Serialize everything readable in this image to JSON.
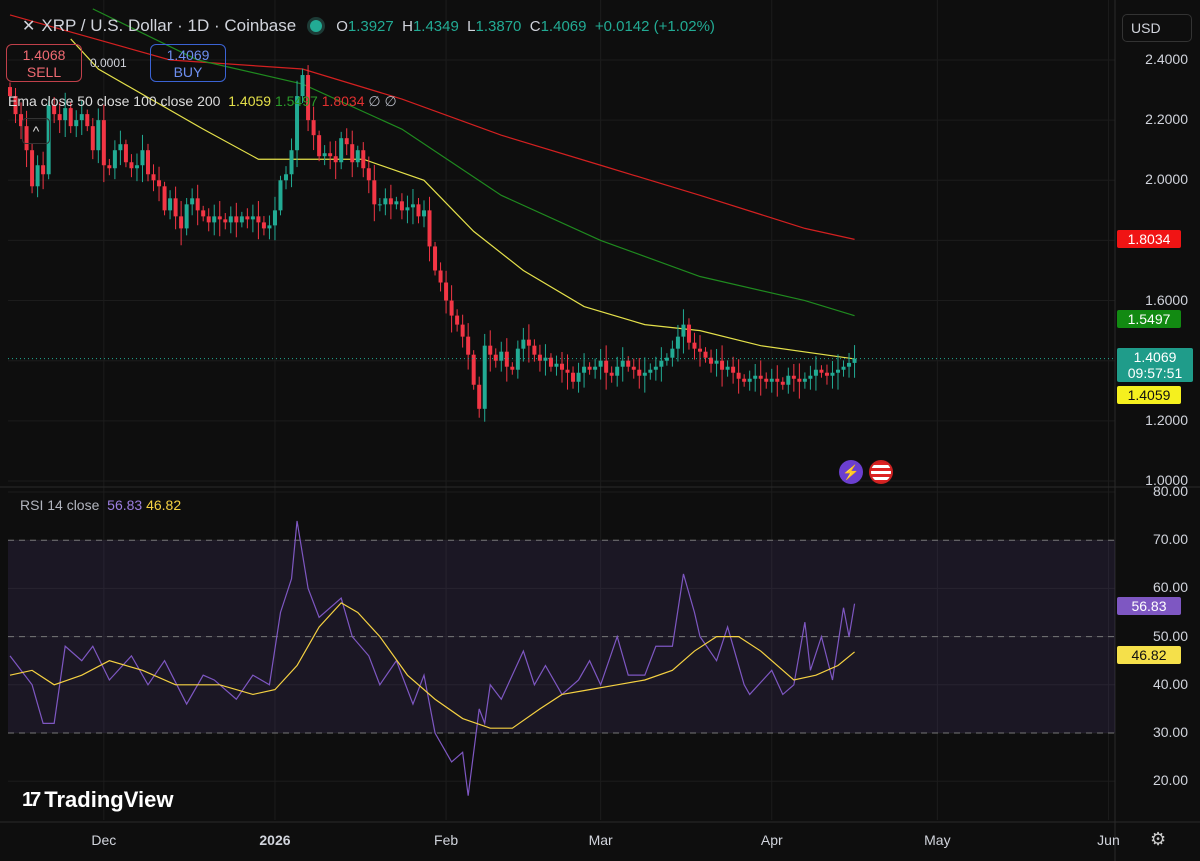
{
  "header": {
    "close_icon": "close-icon",
    "title": "XRP / U.S. Dollar · 1D · Coinbase",
    "o_label": "O",
    "o": "1.3927",
    "h_label": "H",
    "h": "1.4349",
    "l_label": "L",
    "l": "1.3870",
    "c_label": "C",
    "c": "1.4069",
    "change": "+0.0142 (+1.02%)"
  },
  "trade": {
    "sell_price": "1.4068",
    "sell_label": "SELL",
    "spread": "0.0001",
    "buy_price": "1.4069",
    "buy_label": "BUY"
  },
  "currency": "USD",
  "ema_legend": {
    "label": "Ema close 50 close 100 close 200",
    "v50": "1.4059",
    "v100": "1.5497",
    "v200": "1.8034",
    "na1": "∅",
    "na2": "∅",
    "collapse": "^"
  },
  "rsi_legend": {
    "label": "RSI 14 close",
    "rsi": "56.83",
    "ma": "46.82"
  },
  "price_tags": {
    "ema200": "1.8034",
    "ema100": "1.5497",
    "last": "1.4069",
    "countdown": "09:57:51",
    "ema50": "1.4059"
  },
  "rsi_tags": {
    "rsi": "56.83",
    "ma": "46.82"
  },
  "logo": "TradingView",
  "colors": {
    "up": "#22ab94",
    "down": "#f23645",
    "ema50": "#e4e04a",
    "ema100": "#1f8a1f",
    "ema200": "#d32020",
    "rsi": "#7e57c2",
    "rsi_ma": "#f5d142"
  },
  "chart_data": [
    {
      "type": "candlestick",
      "title": "XRP / U.S. Dollar · 1D · Coinbase",
      "start_date": "2025-11-14",
      "closes": [
        2.28,
        2.22,
        2.18,
        2.1,
        1.98,
        2.05,
        2.02,
        2.25,
        2.22,
        2.2,
        2.24,
        2.18,
        2.2,
        2.22,
        2.18,
        2.1,
        2.2,
        2.05,
        2.04,
        2.1,
        2.12,
        2.06,
        2.04,
        2.05,
        2.1,
        2.02,
        2.0,
        1.98,
        1.9,
        1.94,
        1.88,
        1.84,
        1.92,
        1.94,
        1.9,
        1.88,
        1.86,
        1.88,
        1.87,
        1.86,
        1.88,
        1.86,
        1.88,
        1.87,
        1.88,
        1.86,
        1.84,
        1.85,
        1.9,
        2.0,
        2.02,
        2.1,
        2.28,
        2.35,
        2.2,
        2.15,
        2.08,
        2.09,
        2.08,
        2.06,
        2.14,
        2.12,
        2.06,
        2.1,
        2.04,
        2.0,
        1.92,
        1.92,
        1.94,
        1.92,
        1.93,
        1.9,
        1.91,
        1.92,
        1.88,
        1.9,
        1.78,
        1.7,
        1.66,
        1.6,
        1.55,
        1.52,
        1.48,
        1.42,
        1.32,
        1.24,
        1.45,
        1.42,
        1.4,
        1.43,
        1.38,
        1.37,
        1.44,
        1.47,
        1.45,
        1.42,
        1.4,
        1.41,
        1.38,
        1.39,
        1.37,
        1.36,
        1.33,
        1.36,
        1.38,
        1.37,
        1.38,
        1.4,
        1.36,
        1.35,
        1.38,
        1.4,
        1.38,
        1.37,
        1.35,
        1.36,
        1.37,
        1.38,
        1.4,
        1.41,
        1.44,
        1.48,
        1.52,
        1.46,
        1.44,
        1.43,
        1.41,
        1.39,
        1.4,
        1.37,
        1.38,
        1.36,
        1.34,
        1.33,
        1.34,
        1.35,
        1.34,
        1.33,
        1.34,
        1.33,
        1.32,
        1.35,
        1.34,
        1.33,
        1.34,
        1.35,
        1.37,
        1.36,
        1.35,
        1.36,
        1.37,
        1.38,
        1.3927,
        1.4069
      ],
      "ema50": [
        [
          11,
          2.47
        ],
        [
          16,
          2.37
        ],
        [
          35,
          2.17
        ],
        [
          45,
          2.07
        ],
        [
          53,
          2.07
        ],
        [
          64,
          2.07
        ],
        [
          75,
          2.0
        ],
        [
          84,
          1.83
        ],
        [
          93,
          1.7
        ],
        [
          104,
          1.58
        ],
        [
          115,
          1.52
        ],
        [
          125,
          1.5
        ],
        [
          136,
          1.45
        ],
        [
          153,
          1.4059
        ]
      ],
      "ema100": [
        [
          15,
          2.57
        ],
        [
          34,
          2.4
        ],
        [
          53,
          2.32
        ],
        [
          71,
          2.17
        ],
        [
          89,
          1.95
        ],
        [
          107,
          1.8
        ],
        [
          125,
          1.68
        ],
        [
          144,
          1.6
        ],
        [
          153,
          1.5497
        ]
      ],
      "ema200": [
        [
          0,
          2.55
        ],
        [
          29,
          2.4
        ],
        [
          53,
          2.37
        ],
        [
          71,
          2.27
        ],
        [
          89,
          2.15
        ],
        [
          107,
          2.05
        ],
        [
          125,
          1.95
        ],
        [
          144,
          1.84
        ],
        [
          153,
          1.8034
        ]
      ],
      "y_ticks": [
        2.4,
        2.2,
        2.0,
        1.8,
        1.6,
        1.4,
        1.2,
        1.0
      ],
      "ylim": [
        1.0,
        2.4
      ],
      "x_ticks": [
        {
          "label": "Dec",
          "idx": 17
        },
        {
          "label": "2026",
          "idx": 48
        },
        {
          "label": "Feb",
          "idx": 79
        },
        {
          "label": "Mar",
          "idx": 107
        },
        {
          "label": "Apr",
          "idx": 138
        },
        {
          "label": "May",
          "idx": 168
        },
        {
          "label": "Jun",
          "idx": 199
        }
      ]
    },
    {
      "type": "line",
      "title": "RSI 14 close",
      "ylim": [
        20,
        80
      ],
      "y_ticks": [
        80,
        70,
        60,
        50,
        40,
        30,
        20
      ],
      "bands": [
        30,
        50,
        70
      ],
      "rsi": [
        [
          0,
          46
        ],
        [
          4,
          40
        ],
        [
          6,
          32
        ],
        [
          8,
          32
        ],
        [
          10,
          48
        ],
        [
          13,
          45
        ],
        [
          15,
          48
        ],
        [
          18,
          41
        ],
        [
          22,
          46
        ],
        [
          25,
          40
        ],
        [
          28,
          45
        ],
        [
          32,
          36
        ],
        [
          35,
          42
        ],
        [
          37,
          41
        ],
        [
          41,
          37
        ],
        [
          44,
          42
        ],
        [
          47,
          40
        ],
        [
          49,
          55
        ],
        [
          51,
          62
        ],
        [
          52,
          74
        ],
        [
          54,
          60
        ],
        [
          56,
          54
        ],
        [
          60,
          58
        ],
        [
          62,
          50
        ],
        [
          65,
          46
        ],
        [
          67,
          40
        ],
        [
          70,
          45
        ],
        [
          73,
          36
        ],
        [
          75,
          42
        ],
        [
          77,
          30
        ],
        [
          80,
          24
        ],
        [
          82,
          26
        ],
        [
          83,
          17
        ],
        [
          85,
          35
        ],
        [
          86,
          32
        ],
        [
          87,
          40
        ],
        [
          89,
          37
        ],
        [
          91,
          42
        ],
        [
          93,
          47
        ],
        [
          95,
          40
        ],
        [
          97,
          44
        ],
        [
          100,
          38
        ],
        [
          103,
          41
        ],
        [
          105,
          45
        ],
        [
          107,
          40
        ],
        [
          110,
          50
        ],
        [
          112,
          42
        ],
        [
          115,
          42
        ],
        [
          117,
          48
        ],
        [
          120,
          48
        ],
        [
          122,
          63
        ],
        [
          124,
          55
        ],
        [
          125,
          50
        ],
        [
          128,
          45
        ],
        [
          130,
          52
        ],
        [
          133,
          40
        ],
        [
          134,
          38
        ],
        [
          138,
          43
        ],
        [
          140,
          38
        ],
        [
          142,
          40
        ],
        [
          144,
          53
        ],
        [
          145,
          43
        ],
        [
          147,
          50
        ],
        [
          149,
          41
        ],
        [
          151,
          56
        ],
        [
          152,
          50
        ],
        [
          153,
          56.83
        ]
      ],
      "rsi_ma": [
        [
          0,
          42
        ],
        [
          4,
          43
        ],
        [
          8,
          40
        ],
        [
          13,
          42
        ],
        [
          18,
          45
        ],
        [
          24,
          43
        ],
        [
          30,
          40
        ],
        [
          38,
          40
        ],
        [
          44,
          38
        ],
        [
          48,
          39
        ],
        [
          52,
          44
        ],
        [
          56,
          52
        ],
        [
          60,
          57
        ],
        [
          63,
          55
        ],
        [
          67,
          50
        ],
        [
          72,
          42
        ],
        [
          77,
          37
        ],
        [
          82,
          33
        ],
        [
          87,
          31
        ],
        [
          91,
          31
        ],
        [
          96,
          35
        ],
        [
          100,
          38
        ],
        [
          105,
          39
        ],
        [
          110,
          40
        ],
        [
          115,
          41
        ],
        [
          120,
          43
        ],
        [
          124,
          47
        ],
        [
          128,
          50
        ],
        [
          132,
          50
        ],
        [
          136,
          47
        ],
        [
          140,
          43
        ],
        [
          142,
          41
        ],
        [
          146,
          42
        ],
        [
          150,
          44
        ],
        [
          153,
          46.82
        ]
      ]
    }
  ]
}
